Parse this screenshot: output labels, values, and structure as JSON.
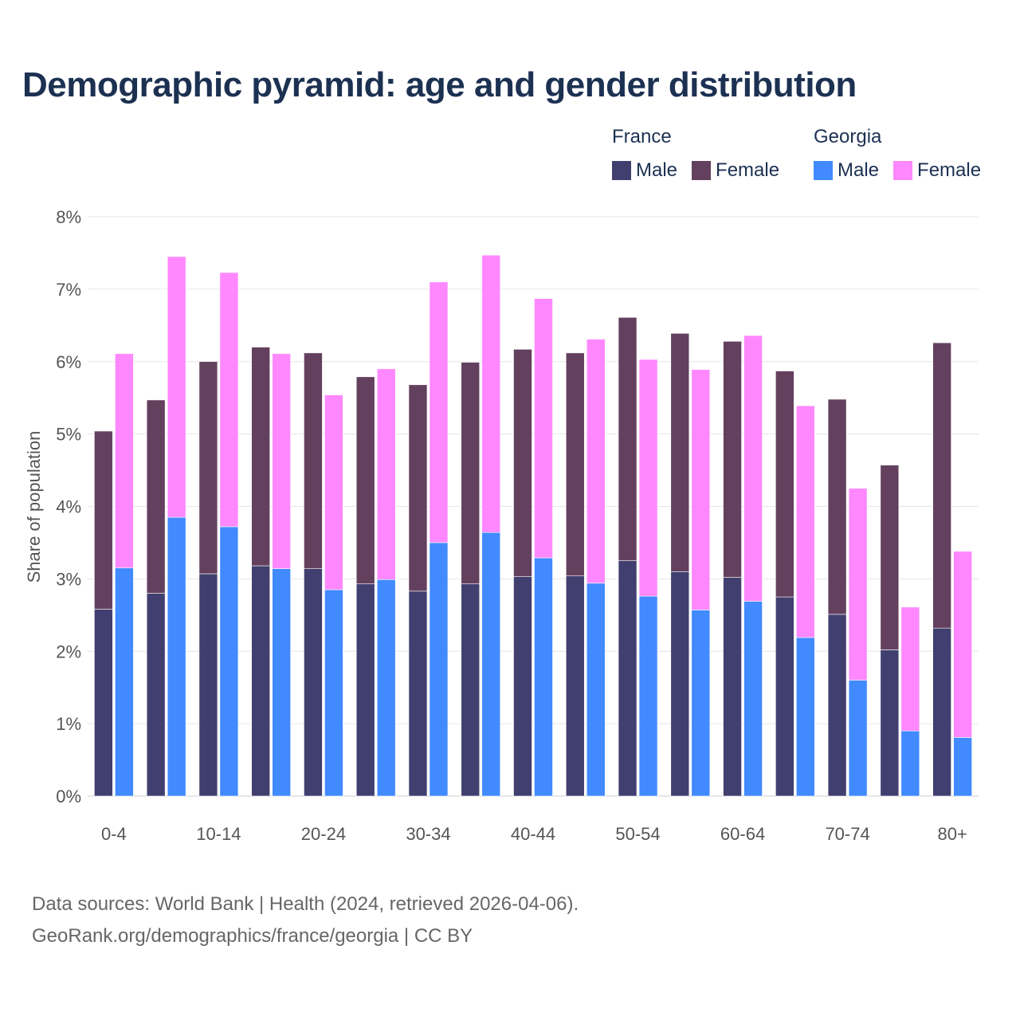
{
  "title": "Demographic pyramid: age and gender distribution",
  "legend": [
    {
      "group": "France",
      "items": [
        {
          "label": "Male",
          "color": "#413f6f"
        },
        {
          "label": "Female",
          "color": "#64405f"
        }
      ]
    },
    {
      "group": "Georgia",
      "items": [
        {
          "label": "Male",
          "color": "#418aff"
        },
        {
          "label": "Female",
          "color": "#ff88ff"
        }
      ]
    }
  ],
  "footer": {
    "line1": "Data sources: World Bank | Health (2024, retrieved 2026-04-06).",
    "line2": "GeoRank.org/demographics/france/georgia | CC BY"
  },
  "chart_data": {
    "type": "bar",
    "stacked": true,
    "title": "Demographic pyramid: age and gender distribution",
    "ylabel": "Share of population",
    "xlabel": "",
    "ylim": [
      0,
      8
    ],
    "yticks": [
      "0%",
      "1%",
      "2%",
      "3%",
      "4%",
      "5%",
      "6%",
      "7%",
      "8%"
    ],
    "grid": true,
    "legend_position": "top-right",
    "categories": [
      "0-4",
      "5-9",
      "10-14",
      "15-19",
      "20-24",
      "25-29",
      "30-34",
      "35-39",
      "40-44",
      "45-49",
      "50-54",
      "55-59",
      "60-64",
      "65-69",
      "70-74",
      "75-79",
      "80+"
    ],
    "xtick_labels_shown": [
      "0-4",
      "10-14",
      "20-24",
      "30-34",
      "40-44",
      "50-54",
      "60-64",
      "70-74",
      "80+"
    ],
    "series": [
      {
        "name": "France Male",
        "stack": "France",
        "color": "#413f6f",
        "values": [
          2.58,
          2.8,
          3.07,
          3.18,
          3.14,
          2.93,
          2.83,
          2.93,
          3.03,
          3.04,
          3.25,
          3.1,
          3.02,
          2.75,
          2.51,
          2.02,
          2.32
        ]
      },
      {
        "name": "France Female",
        "stack": "France",
        "color": "#64405f",
        "values": [
          2.46,
          2.67,
          2.93,
          3.02,
          2.98,
          2.86,
          2.85,
          3.06,
          3.14,
          3.08,
          3.36,
          3.29,
          3.26,
          3.12,
          2.97,
          2.55,
          3.94
        ]
      },
      {
        "name": "Georgia Male",
        "stack": "Georgia",
        "color": "#418aff",
        "values": [
          3.15,
          3.85,
          3.72,
          3.14,
          2.85,
          2.99,
          3.5,
          3.64,
          3.29,
          2.94,
          2.76,
          2.57,
          2.69,
          2.19,
          1.6,
          0.9,
          0.81
        ]
      },
      {
        "name": "Georgia Female",
        "stack": "Georgia",
        "color": "#ff88ff",
        "values": [
          2.96,
          3.6,
          3.51,
          2.97,
          2.69,
          2.91,
          3.6,
          3.83,
          3.58,
          3.37,
          3.27,
          3.32,
          3.67,
          3.2,
          2.65,
          1.71,
          2.57
        ]
      }
    ]
  }
}
